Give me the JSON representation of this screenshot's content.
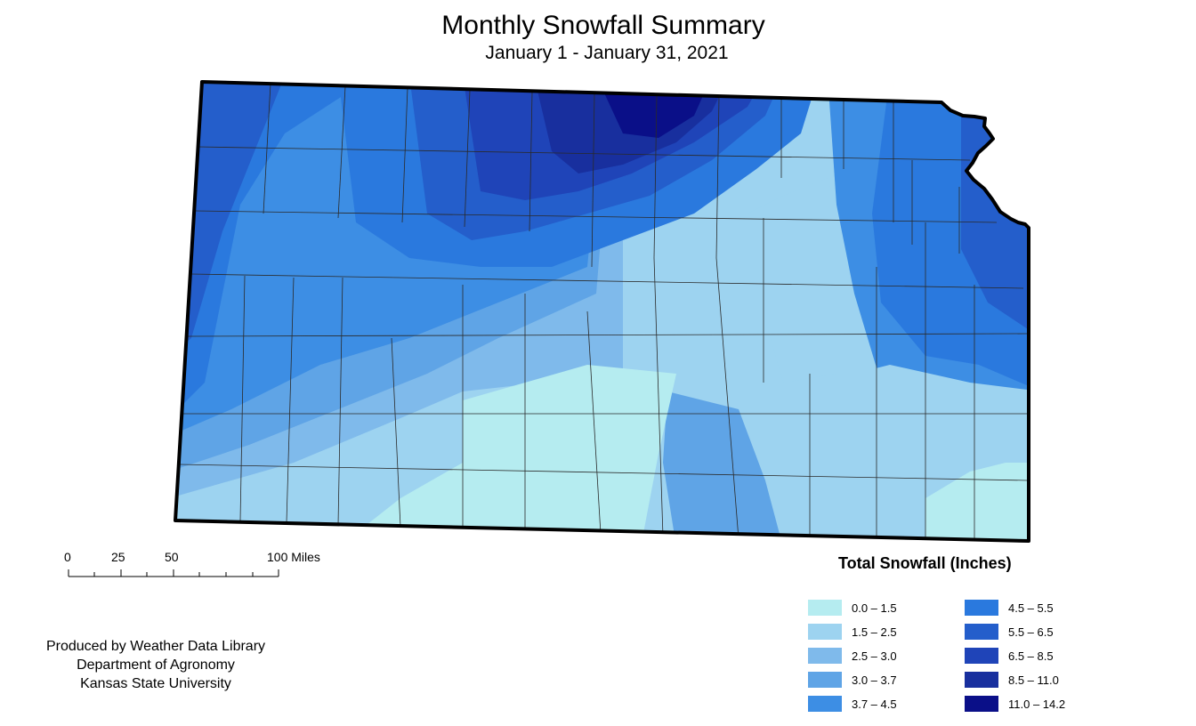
{
  "header": {
    "title": "Monthly Snowfall Summary",
    "subtitle": "January 1 - January 31, 2021"
  },
  "scale_bar": {
    "labels": [
      "0",
      "25",
      "50",
      "100 Miles"
    ]
  },
  "credits": {
    "line1": "Produced by Weather Data Library",
    "line2": "Department of Agronomy",
    "line3": "Kansas State University"
  },
  "legend": {
    "title": "Total Snowfall (Inches)",
    "classes": [
      {
        "label": "0.0 – 1.5",
        "color": "#b5ecf0"
      },
      {
        "label": "1.5 – 2.5",
        "color": "#9dd3f0"
      },
      {
        "label": "2.5 – 3.0",
        "color": "#7fbaeb"
      },
      {
        "label": "3.0 – 3.7",
        "color": "#5fa4e6"
      },
      {
        "label": "3.7 – 4.5",
        "color": "#3d8ee4"
      },
      {
        "label": "4.5 – 5.5",
        "color": "#2a79de"
      },
      {
        "label": "5.5 – 6.5",
        "color": "#245ecb"
      },
      {
        "label": "6.5 – 8.5",
        "color": "#1f44b8"
      },
      {
        "label": "8.5 – 11.0",
        "color": "#182f9e"
      },
      {
        "label": "11.0 – 14.2",
        "color": "#0a0f88"
      }
    ]
  }
}
